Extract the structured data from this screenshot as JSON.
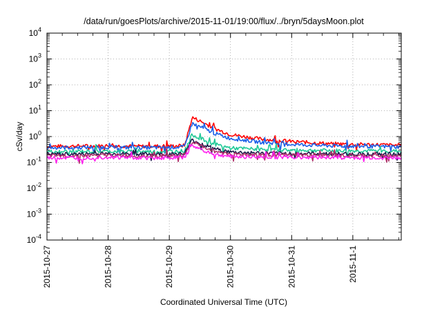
{
  "chart_data": {
    "type": "line",
    "title": "/data/run/goesPlots/archive/2015-11-01/19:00/flux/../bryn/5daysMoon.plot",
    "xlabel": "Coordinated Universal Time (UTC)",
    "ylabel": "cSv/day",
    "yscale": "log",
    "ylim": [
      0.0001,
      10000
    ],
    "xlim": [
      "2015-10-27T00:00",
      "2015-11-01T19:00"
    ],
    "grid": true,
    "y_ticks": [
      {
        "base": "10",
        "exp": "-4"
      },
      {
        "base": "10",
        "exp": "-3"
      },
      {
        "base": "10",
        "exp": "-2"
      },
      {
        "base": "10",
        "exp": "-1"
      },
      {
        "base": "10",
        "exp": "0"
      },
      {
        "base": "10",
        "exp": "1"
      },
      {
        "base": "10",
        "exp": "2"
      },
      {
        "base": "10",
        "exp": "3"
      },
      {
        "base": "10",
        "exp": "4"
      }
    ],
    "x_ticks": [
      "2015-10-27",
      "2015-10-28",
      "2015-10-29",
      "2015-10-30",
      "2015-10-31",
      "2015-11-1"
    ],
    "series": [
      {
        "color": "#ff0000",
        "x": [
          "2015-10-27T00:00",
          "2015-10-27T12:00",
          "2015-10-28T00:00",
          "2015-10-28T12:00",
          "2015-10-29T00:00",
          "2015-10-29T06:00",
          "2015-10-29T09:00",
          "2015-10-29T12:00",
          "2015-10-29T18:00",
          "2015-10-30T00:00",
          "2015-10-30T12:00",
          "2015-10-31T00:00",
          "2015-10-31T12:00",
          "2015-11-01T00:00",
          "2015-11-01T12:00",
          "2015-11-01T19:00"
        ],
        "values": [
          0.42,
          0.43,
          0.44,
          0.42,
          0.43,
          0.45,
          5.5,
          4.0,
          2.0,
          1.2,
          0.8,
          0.65,
          0.55,
          0.5,
          0.48,
          0.45
        ]
      },
      {
        "color": "#1a5fe8",
        "x": [
          "2015-10-27T00:00",
          "2015-10-27T12:00",
          "2015-10-28T00:00",
          "2015-10-28T12:00",
          "2015-10-29T00:00",
          "2015-10-29T06:00",
          "2015-10-29T09:00",
          "2015-10-29T12:00",
          "2015-10-29T18:00",
          "2015-10-30T00:00",
          "2015-10-30T12:00",
          "2015-10-31T00:00",
          "2015-10-31T12:00",
          "2015-11-01T00:00",
          "2015-11-01T12:00",
          "2015-11-01T19:00"
        ],
        "values": [
          0.37,
          0.38,
          0.39,
          0.37,
          0.38,
          0.4,
          3.3,
          2.4,
          1.3,
          0.85,
          0.6,
          0.5,
          0.45,
          0.42,
          0.41,
          0.4
        ]
      },
      {
        "color": "#20c997",
        "x": [
          "2015-10-27T00:00",
          "2015-10-27T12:00",
          "2015-10-28T00:00",
          "2015-10-28T12:00",
          "2015-10-29T00:00",
          "2015-10-29T06:00",
          "2015-10-29T09:00",
          "2015-10-29T12:00",
          "2015-10-29T18:00",
          "2015-10-30T00:00",
          "2015-10-30T12:00",
          "2015-10-31T00:00",
          "2015-10-31T12:00",
          "2015-11-01T00:00",
          "2015-11-01T12:00",
          "2015-11-01T19:00"
        ],
        "values": [
          0.26,
          0.27,
          0.27,
          0.26,
          0.27,
          0.28,
          1.2,
          0.85,
          0.5,
          0.36,
          0.32,
          0.3,
          0.29,
          0.28,
          0.28,
          0.27
        ]
      },
      {
        "color": "#1b1b4a",
        "x": [
          "2015-10-27T00:00",
          "2015-10-27T12:00",
          "2015-10-28T00:00",
          "2015-10-28T12:00",
          "2015-10-29T00:00",
          "2015-10-29T06:00",
          "2015-10-29T09:00",
          "2015-10-29T12:00",
          "2015-10-29T18:00",
          "2015-10-30T00:00",
          "2015-10-30T12:00",
          "2015-10-31T00:00",
          "2015-10-31T12:00",
          "2015-11-01T00:00",
          "2015-11-01T12:00",
          "2015-11-01T19:00"
        ],
        "values": [
          0.21,
          0.21,
          0.22,
          0.21,
          0.21,
          0.22,
          0.75,
          0.55,
          0.33,
          0.25,
          0.23,
          0.22,
          0.22,
          0.21,
          0.21,
          0.21
        ]
      },
      {
        "color": "#b0306a",
        "x": [
          "2015-10-27T00:00",
          "2015-10-27T12:00",
          "2015-10-28T00:00",
          "2015-10-28T12:00",
          "2015-10-29T00:00",
          "2015-10-29T06:00",
          "2015-10-29T09:00",
          "2015-10-29T12:00",
          "2015-10-29T18:00",
          "2015-10-30T00:00",
          "2015-10-30T12:00",
          "2015-10-31T00:00",
          "2015-10-31T12:00",
          "2015-11-01T00:00",
          "2015-11-01T12:00",
          "2015-11-01T19:00"
        ],
        "values": [
          0.18,
          0.18,
          0.19,
          0.18,
          0.18,
          0.19,
          0.6,
          0.45,
          0.27,
          0.21,
          0.2,
          0.19,
          0.19,
          0.18,
          0.18,
          0.18
        ]
      },
      {
        "color": "#ff22ee",
        "x": [
          "2015-10-27T00:00",
          "2015-10-27T12:00",
          "2015-10-28T00:00",
          "2015-10-28T12:00",
          "2015-10-29T00:00",
          "2015-10-29T06:00",
          "2015-10-29T09:00",
          "2015-10-29T12:00",
          "2015-10-29T18:00",
          "2015-10-30T00:00",
          "2015-10-30T12:00",
          "2015-10-31T00:00",
          "2015-10-31T12:00",
          "2015-11-01T00:00",
          "2015-11-01T12:00",
          "2015-11-01T19:00"
        ],
        "values": [
          0.15,
          0.15,
          0.16,
          0.15,
          0.15,
          0.16,
          0.45,
          0.33,
          0.2,
          0.17,
          0.16,
          0.16,
          0.16,
          0.15,
          0.15,
          0.15
        ]
      }
    ]
  }
}
